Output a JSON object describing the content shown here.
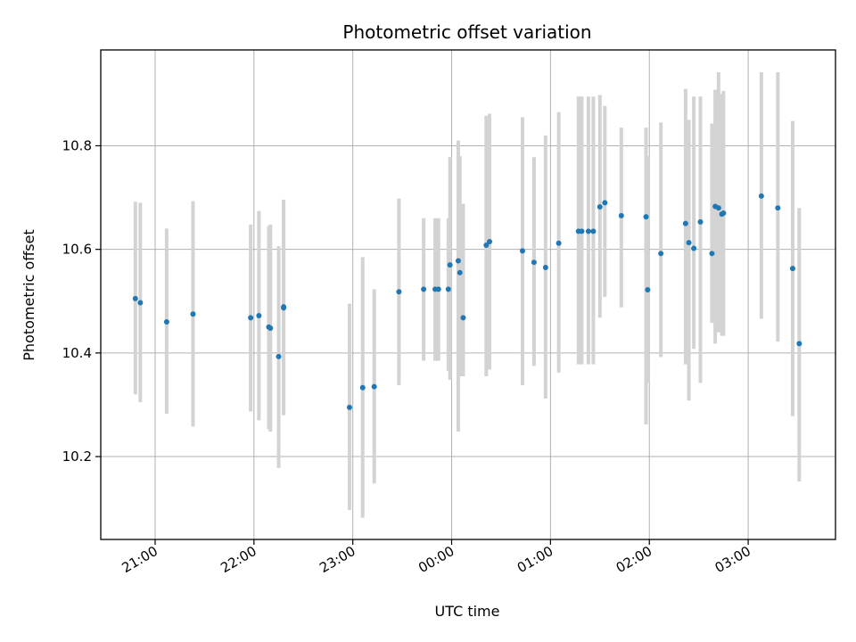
{
  "chart_data": {
    "type": "scatter",
    "title": "Photometric offset variation",
    "xlabel": "UTC time",
    "ylabel": "Photometric offset",
    "x_is_time": true,
    "xlim": [
      "20:27",
      "03:53"
    ],
    "ylim": [
      10.04,
      10.985
    ],
    "x_ticks": [
      "21:00",
      "22:00",
      "23:00",
      "00:00",
      "01:00",
      "02:00",
      "03:00"
    ],
    "y_ticks": [
      10.2,
      10.4,
      10.6,
      10.8
    ],
    "grid": true,
    "colors": {
      "point": "#1f77b4",
      "errorbar": "#d3d3d3",
      "grid": "#b0b0b0"
    },
    "series": [
      {
        "x": [
          "20:48",
          "20:51",
          "21:07",
          "21:23",
          "21:58",
          "22:03",
          "22:09",
          "22:10",
          "22:15",
          "22:18",
          "22:18",
          "22:58",
          "23:06",
          "23:13",
          "23:28",
          "23:43",
          "23:50",
          "23:52",
          "23:58",
          "23:59",
          "24:04",
          "24:05",
          "24:07",
          "24:21",
          "24:23",
          "24:43",
          "24:50",
          "24:57",
          "25:05",
          "25:17",
          "25:19",
          "25:23",
          "25:26",
          "25:30",
          "25:33",
          "25:43",
          "25:58",
          "25:59",
          "26:07",
          "26:22",
          "26:24",
          "26:27",
          "26:31",
          "26:38",
          "26:40",
          "26:42",
          "26:44",
          "26:45",
          "27:08",
          "27:18",
          "27:27",
          "27:31"
        ],
        "y": [
          10.505,
          10.497,
          10.46,
          10.475,
          10.468,
          10.472,
          10.45,
          10.448,
          10.393,
          10.487,
          10.489,
          10.295,
          10.333,
          10.335,
          10.518,
          10.523,
          10.523,
          10.523,
          10.523,
          10.57,
          10.578,
          10.555,
          10.468,
          10.608,
          10.615,
          10.597,
          10.575,
          10.565,
          10.612,
          10.635,
          10.635,
          10.635,
          10.635,
          10.682,
          10.69,
          10.665,
          10.663,
          10.522,
          10.592,
          10.65,
          10.613,
          10.602,
          10.653,
          10.592,
          10.683,
          10.68,
          10.668,
          10.67,
          10.703,
          10.68,
          10.563,
          10.418
        ],
        "yerr_lo": [
          10.32,
          10.305,
          10.283,
          10.258,
          10.287,
          10.27,
          10.253,
          10.248,
          10.178,
          10.28,
          10.28,
          10.097,
          10.082,
          10.148,
          10.338,
          10.385,
          10.385,
          10.385,
          10.365,
          10.348,
          10.248,
          10.355,
          10.355,
          10.355,
          10.368,
          10.338,
          10.375,
          10.312,
          10.362,
          10.378,
          10.378,
          10.378,
          10.378,
          10.468,
          10.508,
          10.488,
          10.262,
          10.342,
          10.392,
          10.378,
          10.308,
          10.408,
          10.342,
          10.458,
          10.418,
          10.44,
          10.433,
          10.433,
          10.466,
          10.422,
          10.278,
          10.152
        ],
        "yerr_hi": [
          10.692,
          10.69,
          10.64,
          10.693,
          10.648,
          10.674,
          10.645,
          10.648,
          10.606,
          10.695,
          10.696,
          10.495,
          10.585,
          10.523,
          10.698,
          10.66,
          10.66,
          10.66,
          10.66,
          10.778,
          10.81,
          10.78,
          10.688,
          10.858,
          10.862,
          10.855,
          10.778,
          10.82,
          10.865,
          10.895,
          10.895,
          10.895,
          10.895,
          10.898,
          10.877,
          10.835,
          10.835,
          10.78,
          10.845,
          10.91,
          10.85,
          10.895,
          10.895,
          10.843,
          10.908,
          10.942,
          10.9,
          10.906,
          10.942,
          10.942,
          10.848,
          10.68
        ]
      }
    ]
  }
}
